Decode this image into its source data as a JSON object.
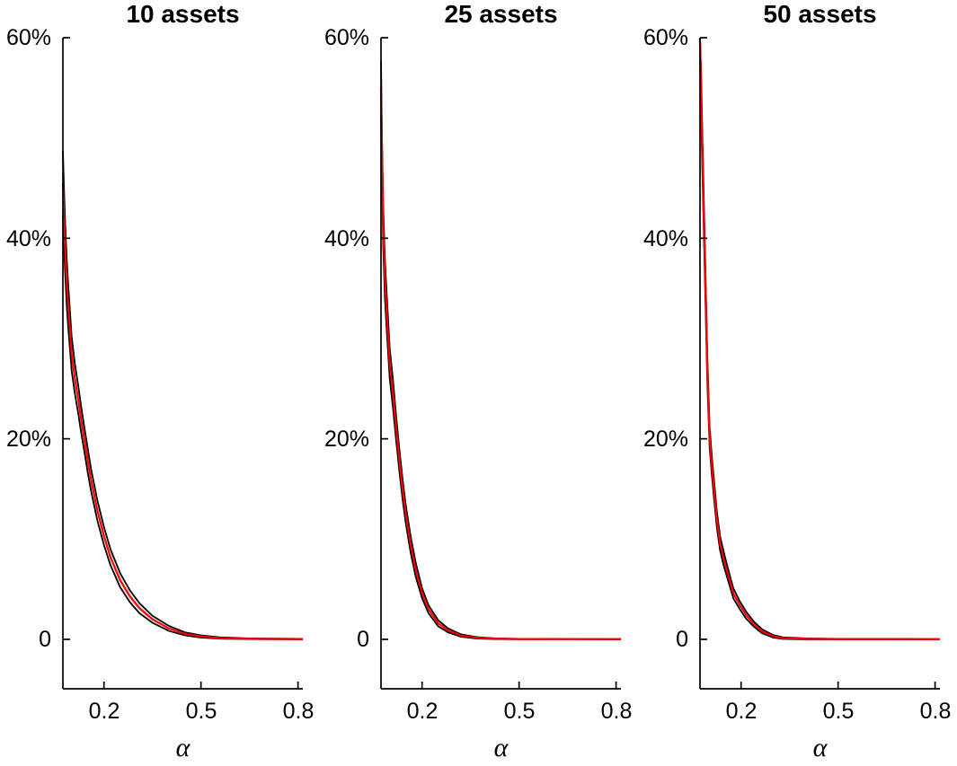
{
  "figure": {
    "background": "#ffffff",
    "band_fill_color": "#ececec",
    "bound_line_color": "#000000",
    "center_line_color": "#ff0000",
    "axis_color": "#000000"
  },
  "chart_data": [
    {
      "type": "line",
      "title": "10 assets",
      "xlabel": "α",
      "ylabel": "",
      "xlim": [
        0.073,
        0.815
      ],
      "ylim": [
        -4.93,
        60
      ],
      "xticks": [
        0.2,
        0.5,
        0.8
      ],
      "xtick_labels": [
        "0.2",
        "0.5",
        "0.8"
      ],
      "yticks": [
        60,
        40,
        20,
        0
      ],
      "ytick_labels": [
        "60%",
        "40%",
        "20%",
        "0"
      ],
      "grid": false,
      "legend": "none",
      "x": [
        0.073,
        0.076,
        0.08,
        0.085,
        0.09,
        0.1,
        0.11,
        0.12,
        0.13,
        0.14,
        0.15,
        0.16,
        0.18,
        0.2,
        0.22,
        0.25,
        0.28,
        0.31,
        0.35,
        0.4,
        0.45,
        0.5,
        0.56,
        0.65,
        0.815
      ],
      "series": [
        {
          "name": "upper bound",
          "values": [
            48.7,
            45.3,
            41.5,
            37.8,
            35.1,
            30.2,
            27.5,
            25.4,
            23.1,
            21.0,
            19.0,
            17.0,
            13.8,
            11.2,
            9.0,
            6.6,
            4.9,
            3.6,
            2.35,
            1.35,
            0.7,
            0.4,
            0.2,
            0.1,
            0.05
          ]
        },
        {
          "name": "center",
          "values": [
            45.5,
            42.5,
            39.0,
            35.5,
            33.0,
            28.5,
            26.0,
            24.0,
            21.8,
            19.8,
            17.8,
            15.9,
            12.8,
            10.3,
            8.2,
            5.9,
            4.3,
            3.1,
            2.0,
            1.1,
            0.55,
            0.3,
            0.12,
            0.05,
            0.02
          ]
        },
        {
          "name": "lower bound",
          "values": [
            42.3,
            39.7,
            36.5,
            33.2,
            30.9,
            26.8,
            24.5,
            22.6,
            20.5,
            18.6,
            16.6,
            14.8,
            11.8,
            9.4,
            7.4,
            5.2,
            3.7,
            2.6,
            1.65,
            0.85,
            0.4,
            0.18,
            0.06,
            0.02,
            0.0
          ]
        }
      ]
    },
    {
      "type": "line",
      "title": "25 assets",
      "xlabel": "α",
      "ylabel": "",
      "xlim": [
        0.073,
        0.815
      ],
      "ylim": [
        -4.93,
        60
      ],
      "xticks": [
        0.2,
        0.5,
        0.8
      ],
      "xtick_labels": [
        "0.2",
        "0.5",
        "0.8"
      ],
      "yticks": [
        60,
        40,
        20,
        0
      ],
      "ytick_labels": [
        "60%",
        "40%",
        "20%",
        "0"
      ],
      "grid": false,
      "legend": "none",
      "x": [
        0.073,
        0.076,
        0.08,
        0.085,
        0.09,
        0.1,
        0.11,
        0.12,
        0.13,
        0.14,
        0.15,
        0.165,
        0.18,
        0.2,
        0.22,
        0.25,
        0.28,
        0.32,
        0.37,
        0.43,
        0.5,
        0.815
      ],
      "series": [
        {
          "name": "upper bound",
          "values": [
            57.7,
            50.2,
            43.0,
            37.9,
            34.8,
            29.0,
            25.9,
            22.2,
            18.9,
            15.9,
            13.3,
            10.2,
            7.7,
            5.1,
            3.4,
            1.9,
            1.1,
            0.5,
            0.22,
            0.1,
            0.05,
            0.03
          ]
        },
        {
          "name": "center",
          "values": [
            55.0,
            48.0,
            41.0,
            36.0,
            33.0,
            27.5,
            24.5,
            21.0,
            17.8,
            14.9,
            12.4,
            9.4,
            7.0,
            4.6,
            3.0,
            1.6,
            0.9,
            0.38,
            0.15,
            0.06,
            0.03,
            0.015
          ]
        },
        {
          "name": "lower bound",
          "values": [
            52.3,
            45.8,
            39.0,
            34.1,
            31.2,
            26.0,
            23.1,
            19.8,
            16.7,
            13.9,
            11.5,
            8.6,
            6.3,
            4.1,
            2.6,
            1.3,
            0.7,
            0.26,
            0.08,
            0.02,
            0.01,
            0.0
          ]
        }
      ]
    },
    {
      "type": "line",
      "title": "50 assets",
      "xlabel": "α",
      "ylabel": "",
      "xlim": [
        0.073,
        0.815
      ],
      "ylim": [
        -4.93,
        60
      ],
      "xticks": [
        0.2,
        0.5,
        0.8
      ],
      "xtick_labels": [
        "0.2",
        "0.5",
        "0.8"
      ],
      "yticks": [
        60,
        40,
        20,
        0
      ],
      "ytick_labels": [
        "60%",
        "40%",
        "20%",
        "0"
      ],
      "grid": false,
      "legend": "none",
      "x": [
        0.073,
        0.076,
        0.08,
        0.085,
        0.09,
        0.096,
        0.103,
        0.11,
        0.116,
        0.125,
        0.135,
        0.145,
        0.155,
        0.176,
        0.196,
        0.216,
        0.24,
        0.265,
        0.3,
        0.33,
        0.4,
        0.5,
        0.815
      ],
      "series": [
        {
          "name": "upper bound",
          "values": [
            60.0,
            57.0,
            50.8,
            43.7,
            36.5,
            27.8,
            21.0,
            18.1,
            16.0,
            12.8,
            10.3,
            8.9,
            7.6,
            5.1,
            3.8,
            2.75,
            1.75,
            1.0,
            0.42,
            0.2,
            0.1,
            0.05,
            0.03
          ]
        },
        {
          "name": "center",
          "values": [
            59.8,
            55.0,
            49.0,
            42.0,
            35.0,
            26.5,
            20.0,
            17.2,
            15.1,
            12.0,
            9.6,
            8.2,
            7.0,
            4.6,
            3.4,
            2.4,
            1.5,
            0.8,
            0.3,
            0.12,
            0.05,
            0.02,
            0.01
          ]
        },
        {
          "name": "lower bound",
          "values": [
            58.5,
            53.0,
            47.2,
            40.3,
            33.5,
            25.2,
            19.0,
            16.3,
            14.2,
            11.2,
            8.9,
            7.5,
            6.4,
            4.1,
            3.0,
            2.05,
            1.25,
            0.6,
            0.18,
            0.04,
            0.0,
            0.0,
            0.0
          ]
        }
      ]
    }
  ]
}
